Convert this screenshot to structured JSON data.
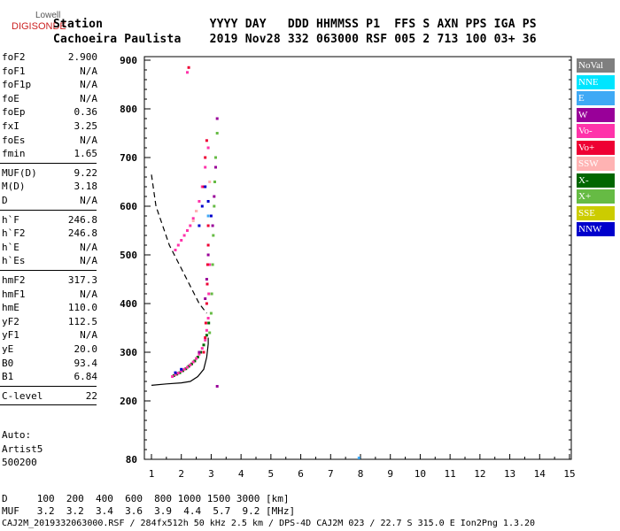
{
  "logo": {
    "line1": "Lowell",
    "line2": "DIGISONDE"
  },
  "header": {
    "line1": "Station               YYYY DAY   DDD HHMMSS P1  FFS S AXN PPS IGA PS",
    "line2": "Cachoeira Paulista    2019 Nov28 332 063000 RSF 005 2 713 100 03+ 36"
  },
  "params": [
    {
      "k": "foF2",
      "v": "2.900"
    },
    {
      "k": "foF1",
      "v": "N/A"
    },
    {
      "k": "foF1p",
      "v": "N/A"
    },
    {
      "k": "foE",
      "v": "N/A"
    },
    {
      "k": "foEp",
      "v": "0.36"
    },
    {
      "k": "fxI",
      "v": "3.25"
    },
    {
      "k": "foEs",
      "v": "N/A"
    },
    {
      "k": "fmin",
      "v": "1.65"
    },
    {
      "k": "MUF(D)",
      "v": "9.22"
    },
    {
      "k": "M(D)",
      "v": "3.18"
    },
    {
      "k": "D",
      "v": "N/A"
    },
    {
      "k": "h`F",
      "v": "246.8"
    },
    {
      "k": "h`F2",
      "v": "246.8"
    },
    {
      "k": "h`E",
      "v": "N/A"
    },
    {
      "k": "h`Es",
      "v": "N/A"
    },
    {
      "k": "hmF2",
      "v": "317.3"
    },
    {
      "k": "hmF1",
      "v": "N/A"
    },
    {
      "k": "hmE",
      "v": "110.0"
    },
    {
      "k": "yF2",
      "v": "112.5"
    },
    {
      "k": "yF1",
      "v": "N/A"
    },
    {
      "k": "yE",
      "v": "20.0"
    },
    {
      "k": "B0",
      "v": "93.4"
    },
    {
      "k": "B1",
      "v": "6.84"
    },
    {
      "k": "C-level",
      "v": "22"
    }
  ],
  "auto": {
    "line1": "Auto:",
    "line2": "Artist5",
    "line3": "500200"
  },
  "footer": {
    "d_line": "D     100  200  400  600  800 1000 1500 3000 [km]",
    "muf_line": "MUF   3.2  3.2  3.4  3.6  3.9  4.4  5.7  9.2 [MHz]",
    "info_line": "CAJ2M_2019332063000.RSF / 284fx512h 50 kHz 2.5 km / DPS-4D CAJ2M 023 / 22.7 S 315.0 E Ion2Png 1.3.20"
  },
  "legend": [
    {
      "label": "NoVal",
      "color": "#7f7f7f"
    },
    {
      "label": "NNE",
      "color": "#00e5ff"
    },
    {
      "label": "E",
      "color": "#3fa9f5"
    },
    {
      "label": "W",
      "color": "#990099"
    },
    {
      "label": "Vo-",
      "color": "#ff33aa"
    },
    {
      "label": "Vo+",
      "color": "#ee0033"
    },
    {
      "label": "SSW",
      "color": "#ffb3b3"
    },
    {
      "label": "X-",
      "color": "#006600"
    },
    {
      "label": "X+",
      "color": "#66bb44"
    },
    {
      "label": "SSE",
      "color": "#cccc00"
    },
    {
      "label": "NNW",
      "color": "#0000cc"
    }
  ],
  "chart_data": {
    "type": "scatter",
    "xlim": [
      1,
      15
    ],
    "ylim": [
      80,
      900
    ],
    "x_ticks": [
      1,
      2,
      3,
      4,
      5,
      6,
      7,
      8,
      9,
      10,
      11,
      12,
      13,
      14,
      15
    ],
    "y_ticks": [
      80,
      200,
      300,
      400,
      500,
      600,
      700,
      800,
      900
    ],
    "y_tick_labels": [
      "80",
      "200",
      "300",
      "400",
      "500",
      "600",
      "700",
      "800",
      "900"
    ],
    "x_tick_labels": [
      "1",
      "2",
      "3",
      "4",
      "5",
      "6",
      "7",
      "8",
      "9",
      "10",
      "11",
      "12",
      "13",
      "14",
      "15"
    ],
    "profile_line": [
      [
        1.0,
        232
      ],
      [
        1.5,
        235
      ],
      [
        2.0,
        237
      ],
      [
        2.3,
        240
      ],
      [
        2.55,
        250
      ],
      [
        2.75,
        265
      ],
      [
        2.85,
        290
      ],
      [
        2.9,
        317
      ],
      [
        2.9,
        330
      ]
    ],
    "dashed_line": [
      [
        1.0,
        665
      ],
      [
        1.15,
        600
      ],
      [
        1.6,
        520
      ],
      [
        2.1,
        460
      ],
      [
        2.6,
        400
      ],
      [
        2.85,
        380
      ]
    ],
    "traces": [
      {
        "name": "X-",
        "color": "#006600",
        "points": [
          [
            1.75,
            252
          ],
          [
            1.85,
            255
          ],
          [
            1.95,
            258
          ],
          [
            2.05,
            262
          ],
          [
            2.15,
            266
          ],
          [
            2.25,
            271
          ],
          [
            2.35,
            276
          ],
          [
            2.45,
            282
          ],
          [
            2.55,
            290
          ],
          [
            2.65,
            300
          ],
          [
            2.75,
            315
          ],
          [
            2.85,
            335
          ],
          [
            2.92,
            360
          ]
        ]
      },
      {
        "name": "X+",
        "color": "#66bb44",
        "points": [
          [
            2.95,
            340
          ],
          [
            3.0,
            380
          ],
          [
            3.02,
            420
          ],
          [
            3.05,
            480
          ],
          [
            3.07,
            540
          ],
          [
            3.1,
            600
          ],
          [
            3.12,
            650
          ],
          [
            3.15,
            700
          ],
          [
            3.2,
            750
          ]
        ]
      },
      {
        "name": "Vo-",
        "color": "#ff33aa",
        "points": [
          [
            1.7,
            250
          ],
          [
            1.8,
            254
          ],
          [
            1.9,
            257
          ],
          [
            2.0,
            261
          ],
          [
            2.1,
            265
          ],
          [
            2.2,
            269
          ],
          [
            2.3,
            274
          ],
          [
            2.4,
            280
          ],
          [
            2.5,
            287
          ],
          [
            2.6,
            296
          ],
          [
            2.7,
            308
          ],
          [
            2.8,
            325
          ],
          [
            2.85,
            345
          ],
          [
            2.9,
            370
          ],
          [
            2.92,
            420
          ],
          [
            2.95,
            480
          ],
          [
            1.8,
            510
          ],
          [
            1.9,
            520
          ],
          [
            2.0,
            530
          ],
          [
            2.1,
            540
          ],
          [
            2.2,
            550
          ],
          [
            2.3,
            560
          ],
          [
            2.4,
            575
          ],
          [
            2.5,
            590
          ],
          [
            2.6,
            610
          ],
          [
            2.7,
            640
          ],
          [
            2.8,
            680
          ],
          [
            2.9,
            720
          ],
          [
            2.2,
            875
          ]
        ]
      },
      {
        "name": "Vo+",
        "color": "#ee0033",
        "points": [
          [
            2.75,
            300
          ],
          [
            2.8,
            330
          ],
          [
            2.82,
            360
          ],
          [
            2.85,
            400
          ],
          [
            2.87,
            440
          ],
          [
            2.88,
            480
          ],
          [
            2.9,
            520
          ],
          [
            2.9,
            560
          ],
          [
            2.75,
            640
          ],
          [
            2.8,
            700
          ],
          [
            2.85,
            735
          ],
          [
            2.25,
            885
          ]
        ]
      },
      {
        "name": "W",
        "color": "#990099",
        "points": [
          [
            2.6,
            300
          ],
          [
            2.8,
            410
          ],
          [
            2.85,
            450
          ],
          [
            2.9,
            500
          ],
          [
            3.05,
            560
          ],
          [
            3.1,
            620
          ],
          [
            3.15,
            680
          ],
          [
            3.2,
            780
          ],
          [
            3.2,
            230
          ]
        ]
      },
      {
        "name": "NNW",
        "color": "#0000cc",
        "points": [
          [
            1.8,
            258
          ],
          [
            2.0,
            265
          ],
          [
            2.6,
            560
          ],
          [
            2.7,
            600
          ],
          [
            2.8,
            640
          ],
          [
            2.9,
            610
          ],
          [
            3.0,
            580
          ]
        ]
      },
      {
        "name": "E",
        "color": "#3fa9f5",
        "points": [
          [
            7.95,
            83
          ],
          [
            2.9,
            580
          ]
        ]
      },
      {
        "name": "SSW",
        "color": "#ffb3b3",
        "points": [
          [
            2.4,
            570
          ],
          [
            2.5,
            590
          ],
          [
            2.95,
            650
          ]
        ]
      }
    ]
  }
}
